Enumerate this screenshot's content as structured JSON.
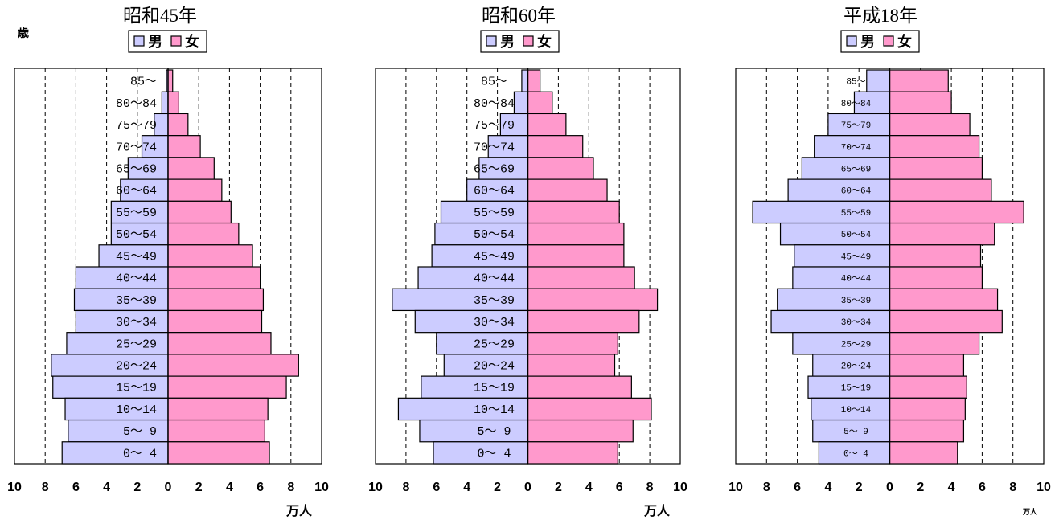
{
  "chart_data": [
    {
      "type": "bar",
      "title": "昭和45年",
      "ylabel": "歳",
      "xunit": "万人",
      "legend": [
        "男",
        "女"
      ],
      "legend_position": "top-center",
      "colors": {
        "male": "#ccccff",
        "female": "#ff99cc"
      },
      "xlim": [
        -10,
        10
      ],
      "xticks": [
        "10",
        "8",
        "6",
        "4",
        "2",
        "0",
        "2",
        "4",
        "6",
        "8",
        "10"
      ],
      "grid": "vertical dashed",
      "categories": [
        "85～",
        "80～84",
        "75～79",
        "70～74",
        "65～69",
        "60～64",
        "55～59",
        "50～54",
        "45～49",
        "40～44",
        "35～39",
        "30～34",
        "25～29",
        "20～24",
        "15～19",
        "10～14",
        "5～ 9",
        "0～ 4"
      ],
      "series": [
        {
          "name": "男",
          "values": [
            0.1,
            0.4,
            0.9,
            1.7,
            2.6,
            3.1,
            3.7,
            3.7,
            4.5,
            6.0,
            6.1,
            6.0,
            6.6,
            7.6,
            7.5,
            6.7,
            6.5,
            6.9
          ]
        },
        {
          "name": "女",
          "values": [
            0.3,
            0.7,
            1.3,
            2.1,
            3.0,
            3.5,
            4.1,
            4.6,
            5.5,
            6.0,
            6.2,
            6.1,
            6.7,
            8.5,
            7.7,
            6.5,
            6.3,
            6.6
          ]
        }
      ]
    },
    {
      "type": "bar",
      "title": "昭和60年",
      "ylabel": "歳",
      "xunit": "万人",
      "legend": [
        "男",
        "女"
      ],
      "legend_position": "top-center",
      "colors": {
        "male": "#ccccff",
        "female": "#ff99cc"
      },
      "xlim": [
        -10,
        10
      ],
      "xticks": [
        "10",
        "8",
        "6",
        "4",
        "2",
        "0",
        "2",
        "4",
        "6",
        "8",
        "10"
      ],
      "grid": "vertical dashed",
      "categories": [
        "85～",
        "80～84",
        "75～79",
        "70～74",
        "65～69",
        "60～64",
        "55～59",
        "50～54",
        "45～49",
        "40～44",
        "35～39",
        "30～34",
        "25～29",
        "20～24",
        "15～19",
        "10～14",
        "5～ 9",
        "0～ 4"
      ],
      "series": [
        {
          "name": "男",
          "values": [
            0.4,
            0.9,
            1.8,
            2.6,
            3.2,
            4.0,
            5.7,
            6.1,
            6.3,
            7.2,
            8.9,
            7.4,
            6.0,
            5.5,
            7.0,
            8.5,
            7.1,
            6.2
          ]
        },
        {
          "name": "女",
          "values": [
            0.8,
            1.6,
            2.5,
            3.6,
            4.3,
            5.2,
            6.0,
            6.3,
            6.3,
            7.0,
            8.5,
            7.3,
            5.9,
            5.7,
            6.8,
            8.1,
            6.9,
            5.9
          ]
        }
      ]
    },
    {
      "type": "bar",
      "title": "平成18年",
      "ylabel": "歳",
      "xunit": "万人",
      "legend": [
        "男",
        "女"
      ],
      "legend_position": "top-center",
      "colors": {
        "male": "#ccccff",
        "female": "#ff99cc"
      },
      "xlim": [
        -10,
        10
      ],
      "xticks": [
        "10",
        "8",
        "6",
        "4",
        "2",
        "0",
        "2",
        "4",
        "6",
        "8",
        "10"
      ],
      "grid": "vertical dashed",
      "categories": [
        "85～",
        "80～84",
        "75～79",
        "70～74",
        "65～69",
        "60～64",
        "55～59",
        "50～54",
        "45～49",
        "40～44",
        "35～39",
        "30～34",
        "25～29",
        "20～24",
        "15～19",
        "10～14",
        "5～ 9",
        "0～ 4"
      ],
      "series": [
        {
          "name": "男",
          "values": [
            1.5,
            2.3,
            4.0,
            4.9,
            5.7,
            6.6,
            8.9,
            7.1,
            6.2,
            6.3,
            7.3,
            7.7,
            6.3,
            5.0,
            5.3,
            5.1,
            5.0,
            4.6
          ]
        },
        {
          "name": "女",
          "values": [
            3.8,
            4.0,
            5.2,
            5.8,
            6.0,
            6.6,
            8.7,
            6.8,
            5.9,
            6.0,
            7.0,
            7.3,
            5.8,
            4.8,
            5.0,
            4.9,
            4.8,
            4.4
          ]
        }
      ]
    }
  ]
}
